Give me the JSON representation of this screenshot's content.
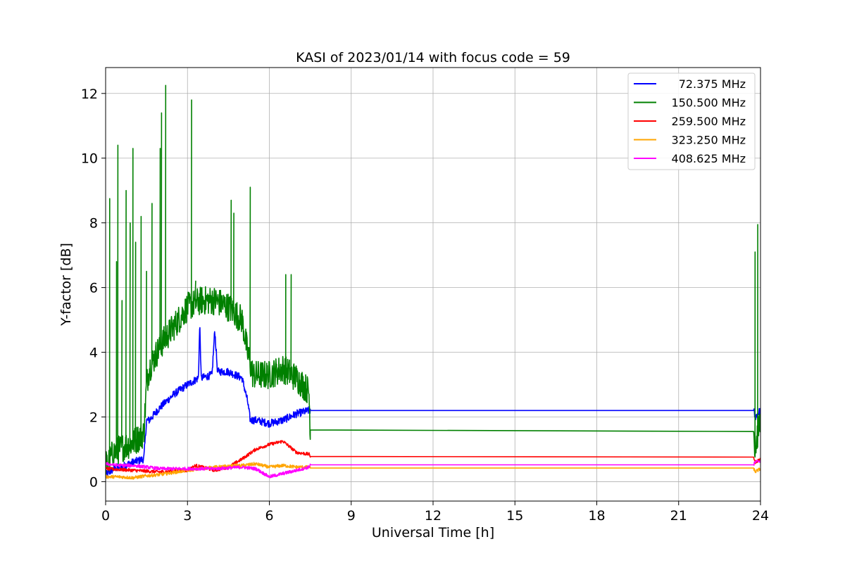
{
  "chart_data": {
    "type": "line",
    "title": "KASI of 2023/01/14 with focus code = 59",
    "xlabel": "Universal Time [h]",
    "ylabel": "Y-factor [dB]",
    "xlim": [
      0,
      24
    ],
    "ylim": [
      -0.6,
      12.8
    ],
    "xticks": [
      0,
      3,
      6,
      9,
      12,
      15,
      18,
      21,
      24
    ],
    "yticks": [
      0,
      2,
      4,
      6,
      8,
      10,
      12
    ],
    "xtick_labels": [
      "0",
      "3",
      "6",
      "9",
      "12",
      "15",
      "18",
      "21",
      "24"
    ],
    "ytick_labels": [
      "0",
      "2",
      "4",
      "6",
      "8",
      "10",
      "12"
    ],
    "grid": true,
    "legend_position": "top-right",
    "series": [
      {
        "name": "72.375 MHz",
        "color": "#0000ff",
        "noise": 0.12,
        "x": [
          0,
          0.3,
          0.7,
          1.0,
          1.4,
          1.5,
          1.6,
          2.0,
          2.5,
          3.0,
          3.4,
          3.45,
          3.5,
          3.9,
          4.0,
          4.1,
          4.5,
          5.0,
          5.2,
          5.3,
          5.5,
          6.0,
          6.5,
          7.0,
          7.45,
          7.5,
          23.75,
          23.8,
          24.0
        ],
        "y": [
          0.2,
          0.4,
          0.5,
          0.6,
          0.7,
          1.9,
          1.9,
          2.3,
          2.7,
          3.0,
          3.2,
          4.9,
          3.2,
          3.3,
          4.7,
          3.4,
          3.4,
          3.2,
          2.5,
          1.9,
          1.9,
          1.8,
          1.9,
          2.1,
          2.2,
          2.2,
          2.2,
          2.0,
          2.2
        ]
      },
      {
        "name": "150.500 MHz",
        "color": "#008000",
        "noise": 0.45,
        "x": [
          0,
          0.3,
          0.7,
          1.0,
          1.4,
          1.5,
          1.6,
          2.0,
          2.5,
          3.0,
          3.5,
          4.0,
          4.5,
          5.0,
          5.2,
          5.4,
          6.0,
          6.5,
          7.0,
          7.45,
          7.5,
          23.75,
          23.8,
          24.0
        ],
        "y": [
          0.5,
          0.9,
          1.1,
          1.2,
          1.5,
          3.0,
          3.5,
          4.2,
          4.8,
          5.4,
          5.6,
          5.6,
          5.4,
          5.0,
          4.0,
          3.3,
          3.3,
          3.5,
          3.2,
          2.8,
          1.6,
          1.55,
          1.0,
          2.0
        ],
        "spikes": [
          [
            0.15,
            8.75
          ],
          [
            0.4,
            6.8
          ],
          [
            0.45,
            10.4
          ],
          [
            0.6,
            5.6
          ],
          [
            0.75,
            9.0
          ],
          [
            0.9,
            8.0
          ],
          [
            1.0,
            10.3
          ],
          [
            1.1,
            7.4
          ],
          [
            1.3,
            8.2
          ],
          [
            1.5,
            6.5
          ],
          [
            1.7,
            8.6
          ],
          [
            2.0,
            10.3
          ],
          [
            2.05,
            11.4
          ],
          [
            2.2,
            12.25
          ],
          [
            3.15,
            11.8
          ],
          [
            3.3,
            6.2
          ],
          [
            4.6,
            8.7
          ],
          [
            4.7,
            8.3
          ],
          [
            5.3,
            9.1
          ],
          [
            6.6,
            6.4
          ],
          [
            6.8,
            6.4
          ],
          [
            23.8,
            7.1
          ],
          [
            23.9,
            7.95
          ]
        ]
      },
      {
        "name": "259.500 MHz",
        "color": "#ff0000",
        "noise": 0.05,
        "x": [
          0,
          1.0,
          2.0,
          3.0,
          3.3,
          4.0,
          4.5,
          5.0,
          5.5,
          6.0,
          6.5,
          7.0,
          7.45,
          7.5,
          23.75,
          23.8,
          24.0
        ],
        "y": [
          0.4,
          0.35,
          0.3,
          0.35,
          0.5,
          0.35,
          0.45,
          0.7,
          1.0,
          1.15,
          1.25,
          0.9,
          0.85,
          0.78,
          0.76,
          0.6,
          0.7
        ]
      },
      {
        "name": "323.250 MHz",
        "color": "#ffa500",
        "noise": 0.05,
        "x": [
          0,
          0.5,
          1.0,
          1.5,
          2.0,
          3.0,
          4.0,
          5.0,
          5.5,
          6.0,
          6.5,
          7.0,
          7.45,
          7.5,
          23.75,
          23.8,
          24.0
        ],
        "y": [
          0.15,
          0.15,
          0.12,
          0.18,
          0.22,
          0.35,
          0.45,
          0.5,
          0.55,
          0.45,
          0.5,
          0.45,
          0.45,
          0.42,
          0.42,
          0.3,
          0.4
        ]
      },
      {
        "name": "408.625 MHz",
        "color": "#ff00ff",
        "noise": 0.05,
        "x": [
          0,
          0.5,
          1.0,
          1.5,
          2.0,
          3.0,
          4.0,
          5.0,
          5.5,
          6.0,
          6.5,
          7.0,
          7.45,
          7.5,
          23.75,
          23.8,
          24.0
        ],
        "y": [
          0.55,
          0.5,
          0.5,
          0.45,
          0.4,
          0.4,
          0.4,
          0.45,
          0.4,
          0.15,
          0.25,
          0.35,
          0.45,
          0.52,
          0.52,
          0.6,
          0.65
        ]
      }
    ]
  }
}
